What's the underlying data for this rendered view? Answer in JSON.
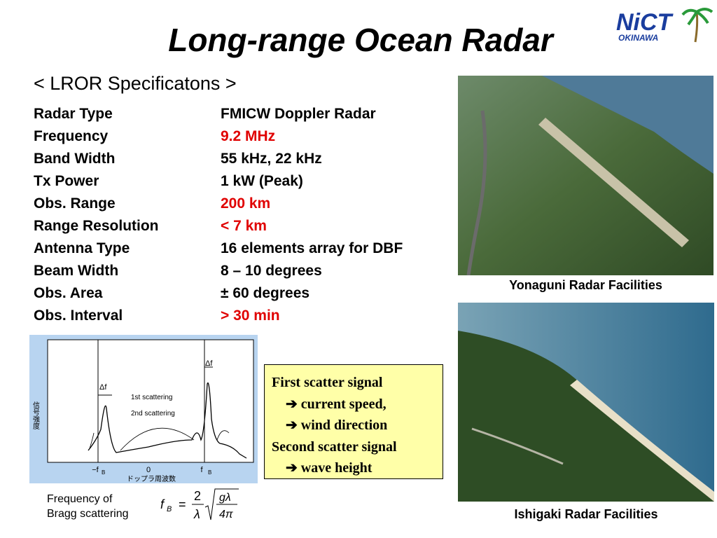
{
  "header": {
    "title": "Long-range Ocean Radar",
    "logo": {
      "name": "NiCT",
      "region": "OKINAWA"
    }
  },
  "specs": {
    "heading": "< LROR Specificatons >",
    "rows": [
      {
        "label": "Radar Type",
        "value": "FMICW Doppler Radar",
        "color": "#000000"
      },
      {
        "label": "Frequency",
        "value": "9.2 MHz",
        "color": "#e00000"
      },
      {
        "label": "Band Width",
        "value": "55 kHz, 22 kHz",
        "color": "#000000"
      },
      {
        "label": "Tx Power",
        "value": "1 kW (Peak)",
        "color": "#000000"
      },
      {
        "label": "Obs. Range",
        "value": "200 km",
        "color": "#e00000"
      },
      {
        "label": "Range Resolution",
        "value": "< 7 km",
        "color": "#e00000"
      },
      {
        "label": "Antenna Type",
        "value": "16 elements array for DBF",
        "color": "#000000"
      },
      {
        "label": "Beam Width",
        "value": "8 – 10 degrees",
        "color": "#000000"
      },
      {
        "label": "Obs. Area",
        "value": "± 60 degrees",
        "color": "#000000"
      },
      {
        "label": "Obs. Interval",
        "value": "> 30 min",
        "color": "#e00000"
      }
    ]
  },
  "spectrum": {
    "y_label": "信号強度",
    "x_label": "ドップラ周波数",
    "delta_left": "Δf",
    "delta_right": "Δf",
    "first": "1st scattering",
    "second": "2nd scattering",
    "ticks": [
      {
        "label": "−f",
        "sub": "B"
      },
      {
        "label": "0",
        "sub": ""
      },
      {
        "label": "f",
        "sub": "B"
      }
    ]
  },
  "formula": {
    "caption": [
      "Frequency of",
      "Bragg scattering"
    ],
    "lhs": "f",
    "lhs_sub": "B",
    "equals": "=",
    "numerator": "2",
    "denominator": "λ",
    "root_numerator": "gλ",
    "root_denominator": "4π"
  },
  "note": {
    "lines": [
      "First scatter signal",
      "➔ current speed,",
      "➔ wind direction",
      "Second scatter signal",
      "➔ wave height"
    ]
  },
  "photos": [
    {
      "caption": "Yonaguni Radar Facilities"
    },
    {
      "caption": "Ishigaki Radar Facilities"
    }
  ]
}
